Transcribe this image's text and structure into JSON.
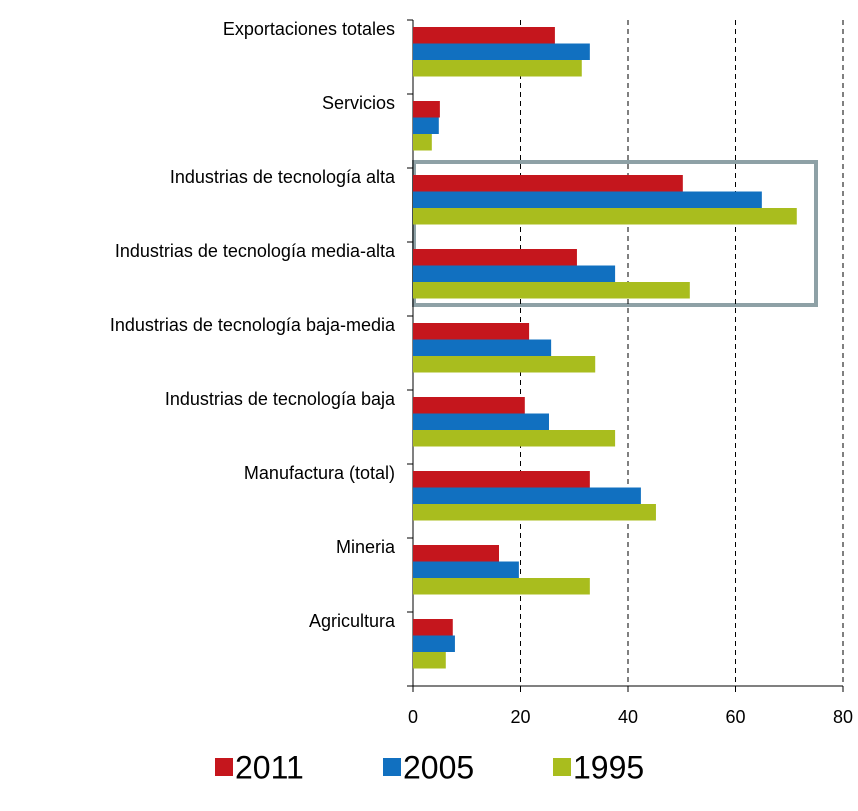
{
  "chart_data": {
    "type": "hbar",
    "categories": [
      "Exportaciones totales",
      "Servicios",
      "Industrias de tecnología alta",
      "Industrias de tecnología media-alta",
      "Industrias de tecnología baja-media",
      "Industrias de tecnología baja",
      "Manufactura (total)",
      "Mineria",
      "Agricultura"
    ],
    "series": [
      {
        "name": "2011",
        "color": "#c5161d",
        "values": [
          26.4,
          5.0,
          50.2,
          30.5,
          21.6,
          20.8,
          32.9,
          16.0,
          7.4
        ]
      },
      {
        "name": "2005",
        "color": "#1170c0",
        "values": [
          32.9,
          4.8,
          64.9,
          37.6,
          25.7,
          25.3,
          42.4,
          19.7,
          7.8
        ]
      },
      {
        "name": "1995",
        "color": "#a9bd1e",
        "values": [
          31.4,
          3.5,
          71.4,
          51.5,
          33.9,
          37.6,
          45.2,
          32.9,
          6.1
        ]
      }
    ],
    "xlim": [
      0,
      80
    ],
    "xticks": [
      0,
      20,
      40,
      60,
      80
    ],
    "grid": true,
    "legend": "bottom"
  }
}
